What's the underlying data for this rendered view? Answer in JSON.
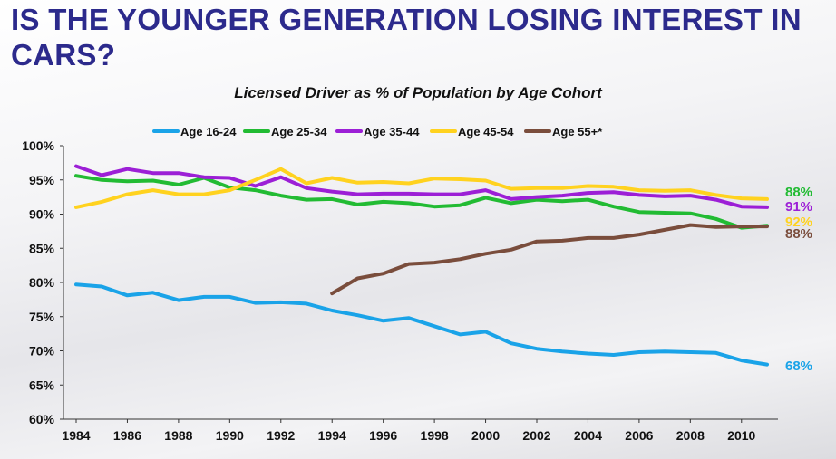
{
  "slide_title": "IS THE YOUNGER GENERATION LOSING INTEREST IN CARS?",
  "chart_data": {
    "type": "line",
    "title": "Licensed Driver as % of Population by Age Cohort",
    "xlabel": "",
    "ylabel": "",
    "xlim": [
      1984,
      2011
    ],
    "ylim": [
      60,
      100
    ],
    "y_ticks": [
      60,
      65,
      70,
      75,
      80,
      85,
      90,
      95,
      100
    ],
    "y_tick_labels": [
      "60%",
      "65%",
      "70%",
      "75%",
      "80%",
      "85%",
      "90%",
      "95%",
      "100%"
    ],
    "x_ticks": [
      1984,
      1986,
      1988,
      1990,
      1992,
      1994,
      1996,
      1998,
      2000,
      2002,
      2004,
      2006,
      2008,
      2010
    ],
    "x_tick_labels": [
      "1984",
      "1986",
      "1988",
      "1990",
      "1992",
      "1994",
      "1996",
      "1998",
      "2000",
      "2002",
      "2004",
      "2006",
      "2008",
      "2010"
    ],
    "grid": false,
    "legend_position": "top",
    "series": [
      {
        "name": "Age 16-24",
        "color": "#1aa3e8",
        "end_label": "68%",
        "x": [
          1984,
          1985,
          1986,
          1987,
          1988,
          1989,
          1990,
          1991,
          1992,
          1993,
          1994,
          1995,
          1996,
          1997,
          1998,
          1999,
          2000,
          2001,
          2002,
          2003,
          2004,
          2005,
          2006,
          2007,
          2008,
          2009,
          2010,
          2011
        ],
        "values": [
          79.7,
          79.4,
          78.1,
          78.5,
          77.4,
          77.9,
          77.9,
          77.0,
          77.1,
          76.9,
          75.9,
          75.2,
          74.4,
          74.8,
          73.6,
          72.4,
          72.8,
          71.1,
          70.3,
          69.9,
          69.6,
          69.4,
          69.8,
          69.9,
          69.8,
          69.7,
          68.6,
          68.0
        ]
      },
      {
        "name": "Age 25-34",
        "color": "#22bb33",
        "end_label": "88%",
        "x": [
          1984,
          1985,
          1986,
          1987,
          1988,
          1989,
          1990,
          1991,
          1992,
          1993,
          1994,
          1995,
          1996,
          1997,
          1998,
          1999,
          2000,
          2001,
          2002,
          2003,
          2004,
          2005,
          2006,
          2007,
          2008,
          2009,
          2010,
          2011
        ],
        "values": [
          95.6,
          95.0,
          94.8,
          94.9,
          94.3,
          95.3,
          93.9,
          93.5,
          92.7,
          92.1,
          92.2,
          91.4,
          91.8,
          91.6,
          91.1,
          91.3,
          92.4,
          91.6,
          92.1,
          91.9,
          92.1,
          91.1,
          90.3,
          90.2,
          90.1,
          89.3,
          88.0,
          88.3
        ]
      },
      {
        "name": "Age 35-44",
        "color": "#9c1fd6",
        "end_label": "91%",
        "x": [
          1984,
          1985,
          1986,
          1987,
          1988,
          1989,
          1990,
          1991,
          1992,
          1993,
          1994,
          1995,
          1996,
          1997,
          1998,
          1999,
          2000,
          2001,
          2002,
          2003,
          2004,
          2005,
          2006,
          2007,
          2008,
          2009,
          2010,
          2011
        ],
        "values": [
          97.0,
          95.7,
          96.6,
          96.0,
          96.0,
          95.4,
          95.3,
          94.1,
          95.4,
          93.8,
          93.3,
          92.9,
          93.0,
          93.0,
          92.9,
          92.9,
          93.5,
          92.2,
          92.5,
          92.7,
          93.1,
          93.2,
          92.8,
          92.6,
          92.7,
          92.1,
          91.1,
          91.0
        ]
      },
      {
        "name": "Age 45-54",
        "color": "#ffd21f",
        "end_label": "92%",
        "x": [
          1984,
          1985,
          1986,
          1987,
          1988,
          1989,
          1990,
          1991,
          1992,
          1993,
          1994,
          1995,
          1996,
          1997,
          1998,
          1999,
          2000,
          2001,
          2002,
          2003,
          2004,
          2005,
          2006,
          2007,
          2008,
          2009,
          2010,
          2011
        ],
        "values": [
          91.0,
          91.8,
          92.9,
          93.5,
          92.9,
          92.9,
          93.5,
          95.0,
          96.6,
          94.5,
          95.3,
          94.6,
          94.7,
          94.5,
          95.2,
          95.1,
          94.9,
          93.7,
          93.8,
          93.8,
          94.1,
          94.0,
          93.5,
          93.4,
          93.5,
          92.8,
          92.3,
          92.2
        ]
      },
      {
        "name": "Age 55+*",
        "color": "#7a4d3c",
        "end_label": "88%",
        "x": [
          1994,
          1995,
          1996,
          1997,
          1998,
          1999,
          2000,
          2001,
          2002,
          2003,
          2004,
          2005,
          2006,
          2007,
          2008,
          2009,
          2010,
          2011
        ],
        "values": [
          78.4,
          80.6,
          81.3,
          82.7,
          82.9,
          83.4,
          84.2,
          84.8,
          86.0,
          86.1,
          86.5,
          86.5,
          87.0,
          87.7,
          88.4,
          88.1,
          88.2,
          88.2
        ]
      }
    ]
  }
}
